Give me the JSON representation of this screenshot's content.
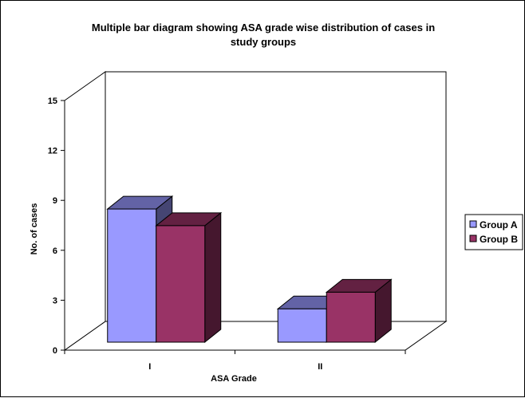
{
  "chart_data": {
    "type": "bar",
    "title": "Multiple bar diagram showing ASA grade wise distribution of cases in study groups",
    "title_lines": [
      "Multiple bar diagram showing ASA grade wise distribution of cases in",
      "study groups"
    ],
    "xlabel": "ASA Grade",
    "ylabel": "No. of cases",
    "categories": [
      "I",
      "II"
    ],
    "series": [
      {
        "name": "Group A",
        "values": [
          8,
          2
        ],
        "color": "#9999FF"
      },
      {
        "name": "Group B",
        "values": [
          7,
          3
        ],
        "color": "#993366"
      }
    ],
    "ylim": [
      0,
      15
    ],
    "yticks": [
      "0",
      "3",
      "6",
      "9",
      "12",
      "15"
    ],
    "grid": false,
    "three_d": true,
    "legend_position": "right"
  }
}
